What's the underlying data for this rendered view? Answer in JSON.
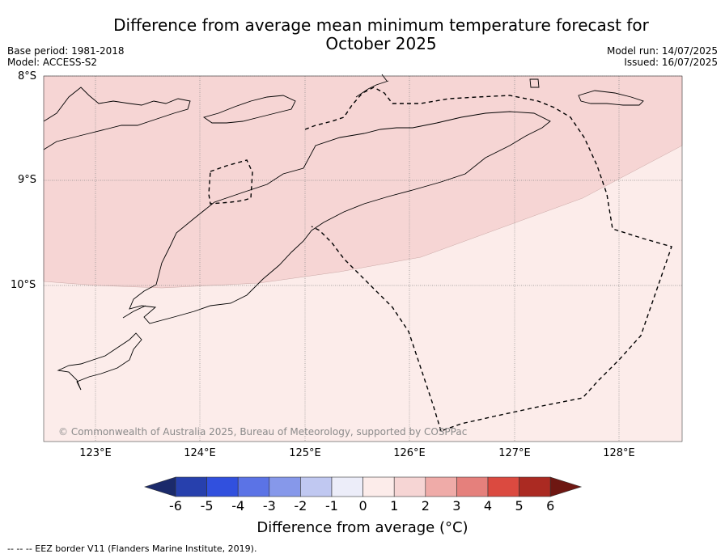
{
  "title": "Difference from average mean minimum temperature forecast for October 2025",
  "meta_left": [
    "Base period: 1981-2018",
    "Model: ACCESS-S2"
  ],
  "meta_right": [
    "Model run: 14/07/2025",
    "Issued: 16/07/2025"
  ],
  "map": {
    "lat_labels": [
      "8°S",
      "9°S",
      "10°S"
    ],
    "lon_labels": [
      "123°E",
      "124°E",
      "125°E",
      "126°E",
      "127°E",
      "128°E"
    ],
    "lat_range": [
      "8°S",
      "11.5°S"
    ],
    "lon_range": [
      "122.5°E",
      "128.6°E"
    ],
    "shaded_categories": [
      "1 to 2",
      "0 to 1"
    ],
    "copyright": "© Commonwealth of Australia 2025, Bureau of Meteorology, supported by COSPPac"
  },
  "colorbar": {
    "ticks": [
      "-6",
      "-5",
      "-4",
      "-3",
      "-2",
      "-1",
      "0",
      "1",
      "2",
      "3",
      "4",
      "5",
      "6"
    ],
    "colors": [
      "#1b2a6b",
      "#2740ad",
      "#3150de",
      "#5b73e6",
      "#8698ea",
      "#c0c8f1",
      "#ecedf9",
      "#fcecea",
      "#f6d5d4",
      "#efaba8",
      "#e5807c",
      "#db4a40",
      "#ab2a22",
      "#6e1712"
    ],
    "label": "Difference from average (°C)"
  },
  "footnote": "--  --  -- EEZ border V11 (Flanders Marine Institute, 2019)."
}
